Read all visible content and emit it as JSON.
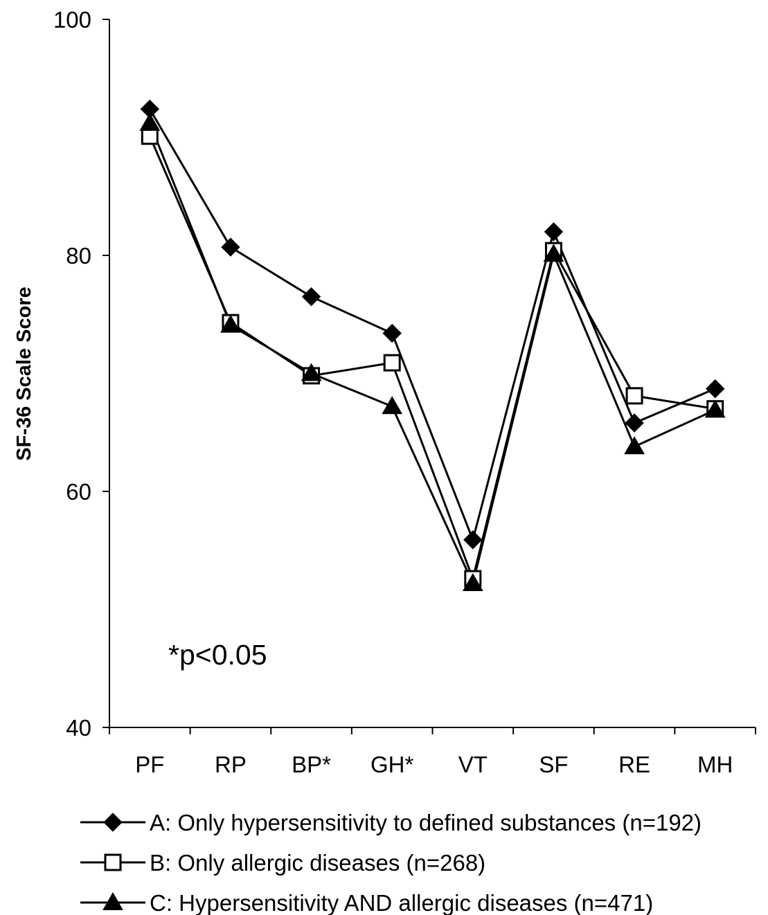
{
  "chart_data": {
    "type": "line",
    "title": "",
    "xlabel": "",
    "ylabel": "SF-36 Scale Score",
    "ylim": [
      40,
      100
    ],
    "yticks": [
      "40",
      "60",
      "80",
      "100"
    ],
    "categories": [
      "PF",
      "RP",
      "BP*",
      "GH*",
      "VT",
      "SF",
      "RE",
      "MH"
    ],
    "grid": false,
    "legend_position": "bottom",
    "annotation": "*p<0.05",
    "series": [
      {
        "name": "A: Only hypersensitivity to defined substances (n=192)",
        "marker": "diamond-filled",
        "color": "#000000",
        "values": [
          92.4,
          80.7,
          76.5,
          73.4,
          55.9,
          82.0,
          65.8,
          68.7
        ]
      },
      {
        "name": "B: Only allergic diseases (n=268)",
        "marker": "square-open",
        "color": "#000000",
        "values": [
          90.1,
          74.3,
          69.8,
          70.9,
          52.6,
          80.4,
          68.1,
          67.0
        ]
      },
      {
        "name": "C: Hypersensitivity AND allergic diseases (n=471)",
        "marker": "triangle-filled",
        "color": "#000000",
        "values": [
          91.2,
          74.1,
          70.0,
          67.2,
          52.2,
          80.1,
          63.8,
          66.9
        ]
      }
    ]
  }
}
